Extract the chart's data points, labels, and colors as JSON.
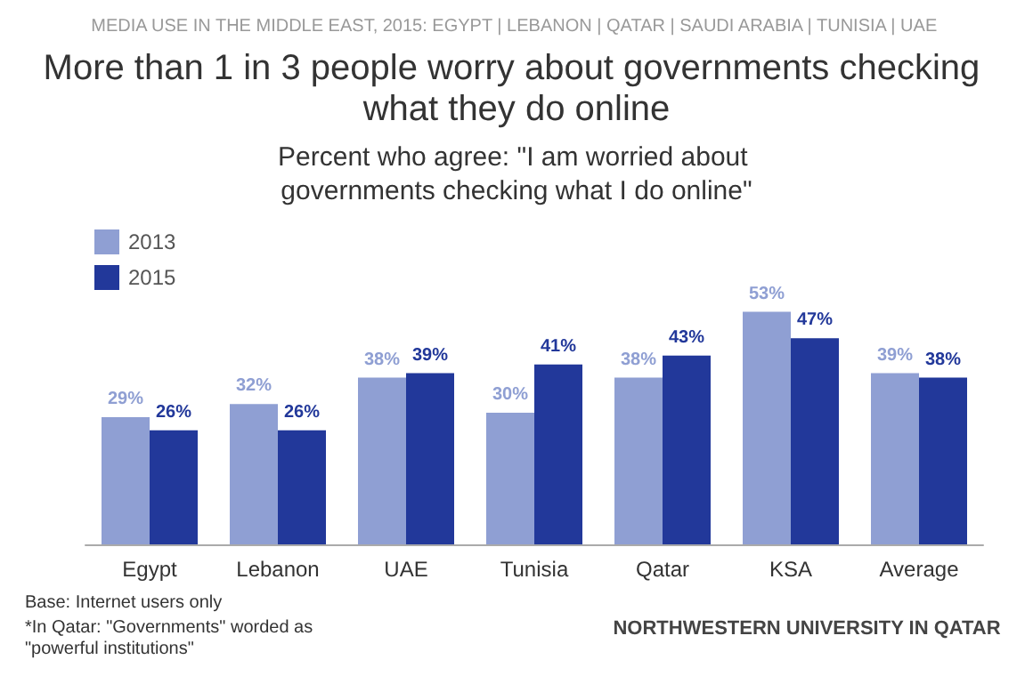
{
  "chart_data": {
    "type": "bar",
    "title": "More than 1 in 3 people worry about governments checking what they do online",
    "subtitle": "Percent who agree: \"I am worried about governments checking what I do online\"",
    "annotations": [
      "MEDIA USE IN THE MIDDLE EAST, 2015: EGYPT | LEBANON | QATAR | SAUDI ARABIA | TUNISIA | UAE",
      "Base: Internet users only",
      "*In Qatar: \"Governments\" worded as \"powerful institutions\"",
      "NORTHWESTERN UNIVERSITY IN QATAR"
    ],
    "categories": [
      "Egypt",
      "Lebanon",
      "UAE",
      "Tunisia",
      "Qatar",
      "KSA",
      "Average"
    ],
    "series": [
      {
        "name": "2013",
        "color": "#8f9fd3",
        "values": [
          29,
          32,
          38,
          30,
          38,
          53,
          39
        ],
        "value_labels": [
          "29%",
          "32%",
          "38%",
          "30%",
          "38%",
          "53%",
          "39%"
        ]
      },
      {
        "name": "2015",
        "color": "#22389a",
        "values": [
          26,
          26,
          39,
          41,
          43,
          47,
          38
        ],
        "value_labels": [
          "26%",
          "26%",
          "39%",
          "41%",
          "43%",
          "47%",
          "38%"
        ]
      }
    ],
    "legend": "top left"
  }
}
